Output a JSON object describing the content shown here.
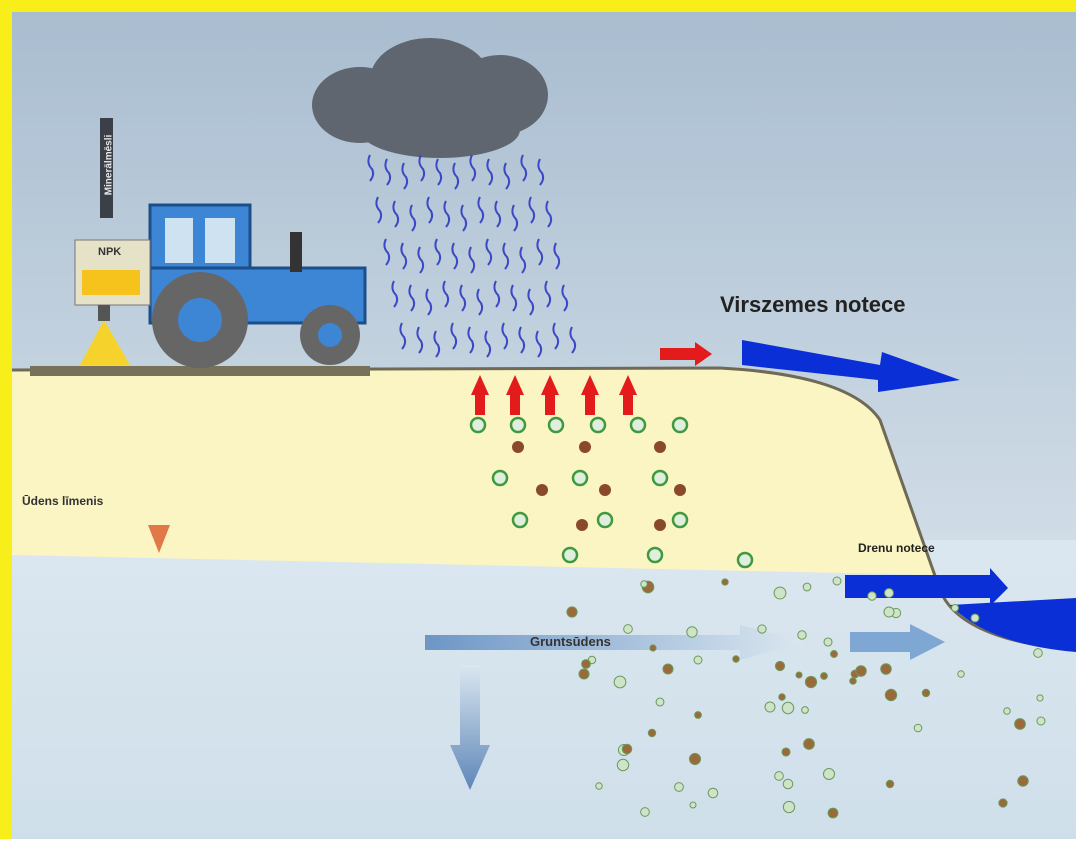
{
  "labels": {
    "fertilizer": "Minerālmēsli",
    "npk": "NPK",
    "surface_runoff": "Virszemes notece",
    "water_level": "Ūdens līmenis",
    "drain_runoff": "Drenu notece",
    "groundwater": "Gruntsūdens"
  }
}
